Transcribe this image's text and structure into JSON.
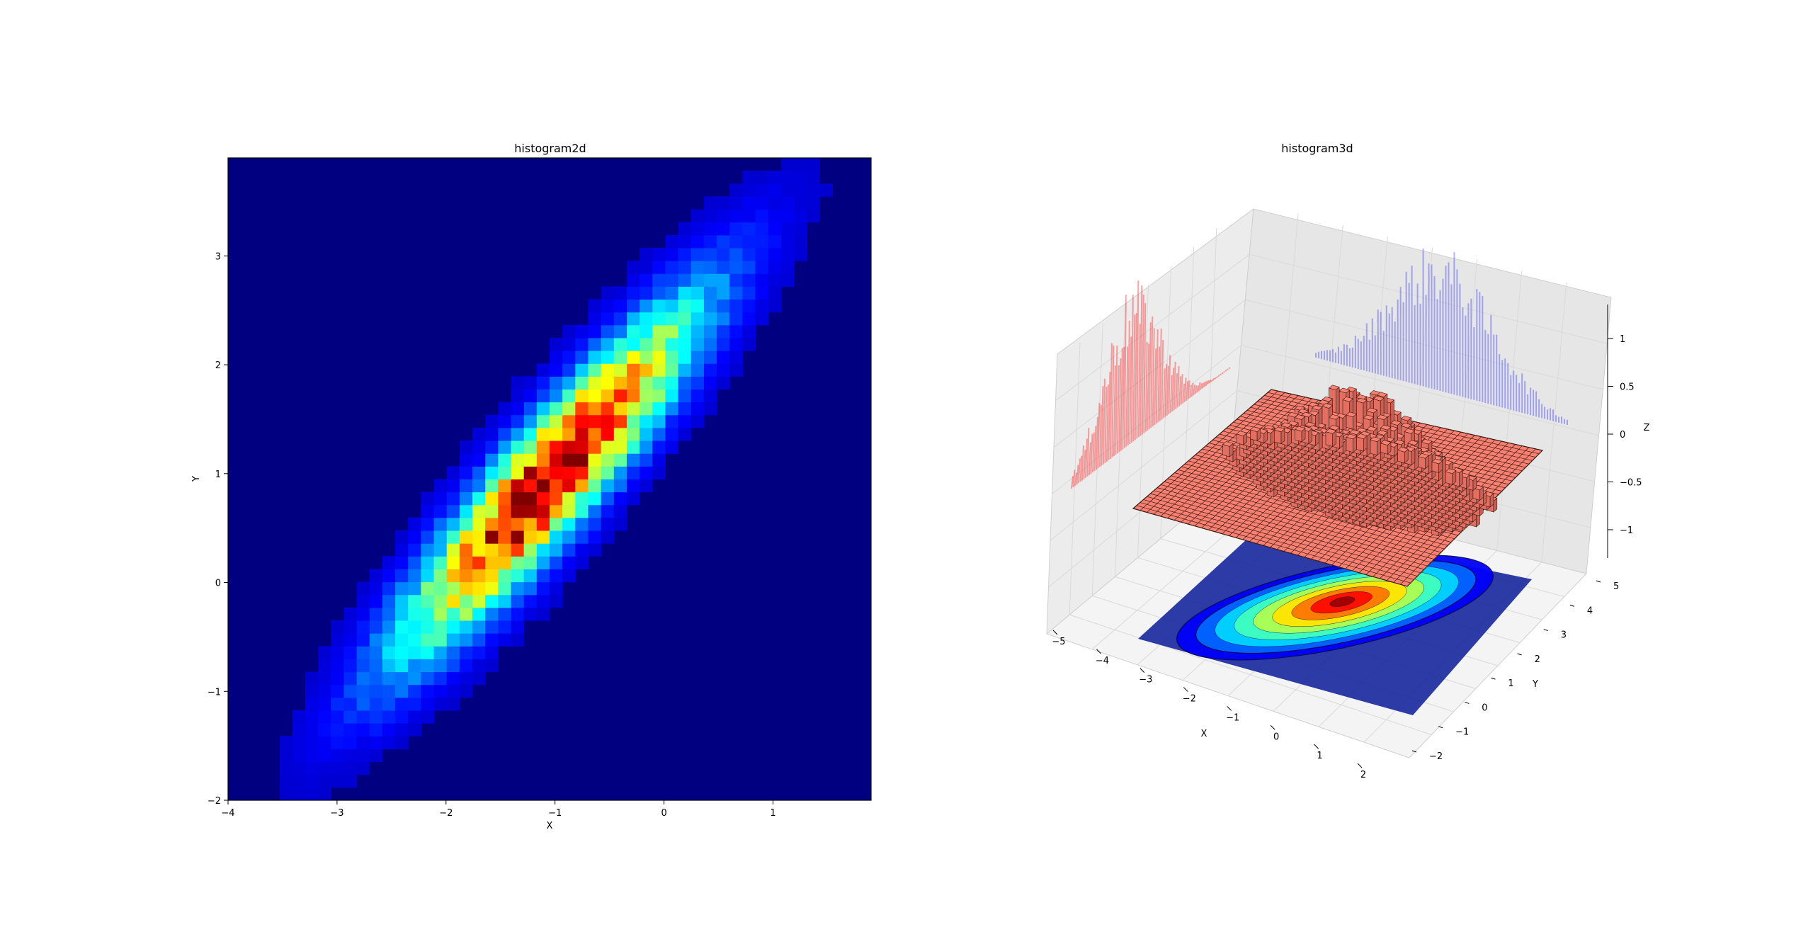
{
  "chart_data": [
    {
      "type": "heatmap",
      "title": "histogram2d",
      "xlabel": "X",
      "ylabel": "Y",
      "xlim": [
        -4,
        1.9
      ],
      "ylim": [
        -2,
        3.9
      ],
      "xticks": [
        -4,
        -3,
        -2,
        -1,
        0,
        1
      ],
      "yticks": [
        -2,
        -1,
        0,
        1,
        2,
        3
      ],
      "bins": 50,
      "colormap": "jet",
      "distribution": {
        "center": [
          -1.05,
          0.95
        ],
        "sigma_major": 1.35,
        "sigma_minor": 0.28,
        "orientation_deg": 50
      }
    },
    {
      "type": "bar3d",
      "title": "histogram3d",
      "xlabel": "X",
      "ylabel": "Y",
      "zlabel": "Z",
      "xticks": [
        -5,
        -4,
        -3,
        -2,
        -1,
        0,
        1,
        2
      ],
      "yticks": [
        -2,
        -1,
        0,
        1,
        2,
        3,
        4,
        5
      ],
      "zticks": [
        -1.0,
        -0.5,
        0.0,
        0.5,
        1.0
      ],
      "bar_color": "#fa8072",
      "x_marginal_color": "#ff0000",
      "y_marginal_color": "#0000ff",
      "contour_colormap": "jet"
    }
  ],
  "colors": {
    "background": "#ffffff",
    "heatmap_low": "#000080",
    "pane": "#f2f2f2",
    "grid": "#d9d9d9"
  }
}
